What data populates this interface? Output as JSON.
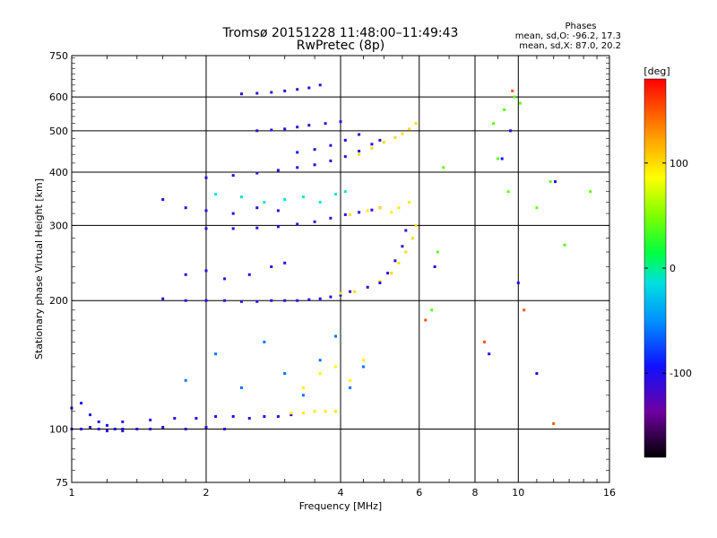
{
  "chart_data": {
    "type": "scatter",
    "title": "Tromsø 20151228 11:48:00–11:49:43",
    "subtitle": "RwPretec (8p)",
    "xlabel": "Frequency [MHz]",
    "ylabel": "Stationary phase Virtual Height [km]",
    "x_scale": "log",
    "y_scale": "log",
    "xlim": [
      1,
      16
    ],
    "ylim": [
      75,
      750
    ],
    "x_ticks": [
      1,
      2,
      4,
      6,
      8,
      10,
      16
    ],
    "x_tick_labels": [
      "1",
      "2",
      "4",
      "6",
      "8",
      "10",
      "16"
    ],
    "y_ticks": [
      75,
      100,
      200,
      300,
      400,
      500,
      600,
      750
    ],
    "y_tick_labels": [
      "75",
      "100",
      "200",
      "300",
      "400",
      "500",
      "600",
      "750"
    ],
    "grid": true,
    "stats": {
      "heading": "Phases",
      "line1": "mean, sd,O: -96.2, 17.3",
      "line2": "mean, sd,X:  87.0, 20.2"
    },
    "colorbar": {
      "label": "[deg]",
      "range": [
        -180,
        180
      ],
      "ticks": [
        100,
        0,
        -100
      ],
      "tick_labels": [
        "100",
        "0",
        "-100"
      ]
    },
    "series": [
      {
        "x": [
          1.0,
          1.05,
          1.1,
          1.15,
          1.2,
          1.3,
          1.4,
          1.5,
          1.6,
          1.8,
          2.0,
          2.2
        ],
        "phase": -110,
        "y": [
          100,
          100,
          101,
          100,
          99,
          99,
          100,
          100,
          101,
          100,
          101,
          100
        ]
      },
      {
        "x": [
          1.0,
          1.05,
          1.1,
          1.15,
          1.2,
          1.25,
          1.3
        ],
        "phase": -100,
        "y": [
          112,
          115,
          108,
          104,
          102,
          100,
          100
        ]
      },
      {
        "x": [
          1.3,
          1.5,
          1.7,
          1.9,
          2.1,
          2.3,
          2.5,
          2.7,
          2.9,
          3.1
        ],
        "phase": -105,
        "y": [
          104,
          105,
          106,
          106,
          107,
          107,
          106,
          107,
          107,
          108
        ]
      },
      {
        "x": [
          3.1,
          3.3,
          3.5,
          3.7,
          3.9
        ],
        "phase": 95,
        "y": [
          109,
          109,
          110,
          110,
          110
        ]
      },
      {
        "x": [
          1.6,
          1.8,
          2.0,
          2.2,
          2.4,
          2.6,
          2.8,
          3.0,
          3.2,
          3.4,
          3.6,
          3.8,
          4.0
        ],
        "phase": -105,
        "y": [
          202,
          200,
          200,
          200,
          199,
          199,
          200,
          200,
          200,
          201,
          202,
          204,
          206
        ]
      },
      {
        "x": [
          4.0,
          4.3,
          4.6,
          4.9,
          5.2,
          5.4,
          5.6,
          5.8,
          5.9
        ],
        "phase": 100,
        "y": [
          208,
          210,
          215,
          222,
          232,
          245,
          260,
          280,
          300
        ]
      },
      {
        "x": [
          4.2,
          4.6,
          4.9,
          5.1,
          5.3,
          5.5,
          5.6
        ],
        "phase": -110,
        "y": [
          210,
          215,
          220,
          232,
          248,
          268,
          292
        ]
      },
      {
        "x": [
          1.8,
          2.0,
          2.2,
          2.5,
          2.8,
          3.0
        ],
        "phase": -100,
        "y": [
          230,
          235,
          225,
          230,
          240,
          245
        ]
      },
      {
        "x": [
          2.0,
          2.3,
          2.6,
          2.9,
          3.2,
          3.5,
          3.8,
          4.1,
          4.4,
          4.7,
          4.9
        ],
        "phase": -105,
        "y": [
          295,
          295,
          296,
          298,
          302,
          306,
          312,
          318,
          322,
          326,
          330
        ]
      },
      {
        "x": [
          4.2,
          4.6,
          4.9,
          5.2,
          5.4,
          5.7
        ],
        "phase": 95,
        "y": [
          318,
          325,
          330,
          322,
          330,
          340
        ]
      },
      {
        "x": [
          1.6,
          1.8,
          2.0,
          2.3,
          2.6,
          2.9
        ],
        "phase": -100,
        "y": [
          345,
          330,
          325,
          320,
          330,
          325
        ]
      },
      {
        "x": [
          2.1,
          2.4,
          2.7,
          3.0,
          3.3,
          3.6,
          3.9,
          4.1
        ],
        "phase": -10,
        "y": [
          355,
          350,
          340,
          345,
          350,
          340,
          355,
          360
        ]
      },
      {
        "x": [
          2.0,
          2.3,
          2.6,
          2.9,
          3.2,
          3.5,
          3.8,
          4.1,
          4.4,
          4.7,
          4.9
        ],
        "phase": -105,
        "y": [
          388,
          393,
          398,
          404,
          410,
          416,
          425,
          435,
          448,
          465,
          475
        ]
      },
      {
        "x": [
          4.4,
          4.7,
          5.0,
          5.3,
          5.5,
          5.7,
          5.9
        ],
        "phase": 100,
        "y": [
          440,
          455,
          470,
          482,
          492,
          505,
          520
        ]
      },
      {
        "x": [
          3.2,
          3.5,
          3.8,
          4.1,
          4.4
        ],
        "phase": -100,
        "y": [
          445,
          452,
          462,
          475,
          490
        ]
      },
      {
        "x": [
          2.6,
          2.8,
          3.0,
          3.2,
          3.4,
          3.7,
          4.0
        ],
        "phase": -105,
        "y": [
          500,
          502,
          505,
          510,
          515,
          520,
          525
        ]
      },
      {
        "x": [
          2.4,
          2.6,
          2.8,
          3.0,
          3.2,
          3.4,
          3.6
        ],
        "phase": -110,
        "y": [
          610,
          612,
          615,
          620,
          625,
          630,
          640
        ]
      },
      {
        "x": [
          1.8,
          2.1,
          2.4,
          2.7,
          3.0,
          3.3,
          3.6,
          3.9,
          4.2,
          4.5
        ],
        "phase": -60,
        "y": [
          130,
          150,
          125,
          160,
          135,
          120,
          145,
          165,
          125,
          140
        ]
      },
      {
        "x": [
          3.3,
          3.6,
          3.9,
          4.2,
          4.5
        ],
        "phase": 90,
        "y": [
          125,
          135,
          140,
          130,
          145
        ]
      },
      {
        "x": [
          6.4,
          6.6,
          6.8,
          8.8,
          9.0,
          9.3,
          9.5,
          9.8,
          10.1,
          11.0,
          11.8,
          12.7,
          14.5
        ],
        "phase": 40,
        "y": [
          190,
          260,
          410,
          520,
          430,
          560,
          360,
          600,
          580,
          330,
          380,
          270,
          360
        ]
      },
      {
        "x": [
          6.5,
          8.6,
          9.2,
          9.6,
          10.0,
          11.0,
          12.1
        ],
        "phase": -100,
        "y": [
          240,
          150,
          430,
          500,
          220,
          135,
          380
        ]
      },
      {
        "x": [
          6.2,
          8.4,
          9.7,
          10.3,
          12.0
        ],
        "phase": 150,
        "y": [
          180,
          160,
          620,
          190,
          103
        ]
      }
    ]
  }
}
